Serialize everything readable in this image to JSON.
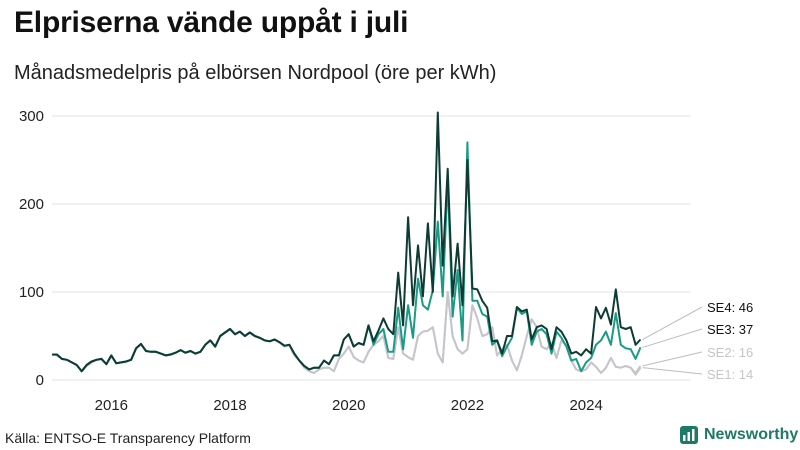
{
  "title": "Elpriserna vände uppåt i juli",
  "subtitle": "Månadsmedelpris på elbörsen Nordpool (öre per kWh)",
  "source": "Källa: ENTSO-E Transparency Platform",
  "brand": "Newsworthy",
  "chart_data": {
    "type": "line",
    "x_start": "2015-01",
    "frequency": "monthly",
    "xlim": [
      2015.0,
      2025.75
    ],
    "ylim": [
      0,
      310
    ],
    "xticks": [
      2016,
      2018,
      2020,
      2022,
      2024
    ],
    "xtick_labels": [
      "2016",
      "2018",
      "2020",
      "2022",
      "2024"
    ],
    "yticks": [
      0,
      100,
      200,
      300
    ],
    "ytick_labels": [
      "0",
      "100",
      "200",
      "300"
    ],
    "series": [
      {
        "name": "SE1",
        "color": "#c5c5cc",
        "last_label": "SE1: 14",
        "values": [
          29,
          28,
          24,
          23,
          20,
          17,
          10,
          16,
          20,
          23,
          24,
          18,
          27,
          19,
          20,
          21,
          23,
          36,
          40,
          33,
          32,
          32,
          30,
          28,
          29,
          31,
          34,
          31,
          33,
          30,
          32,
          40,
          45,
          38,
          50,
          54,
          58,
          52,
          55,
          50,
          54,
          50,
          48,
          45,
          44,
          46,
          43,
          38,
          40,
          28,
          22,
          14,
          10,
          8,
          12,
          14,
          14,
          10,
          24,
          30,
          38,
          26,
          22,
          20,
          32,
          40,
          44,
          50,
          25,
          24,
          60,
          30,
          26,
          23,
          50,
          55,
          56,
          60,
          30,
          20,
          100,
          50,
          35,
          30,
          35,
          85,
          70,
          50,
          52,
          60,
          28,
          35,
          40,
          22,
          11,
          28,
          50,
          69,
          60,
          38,
          35,
          42,
          25,
          45,
          39,
          22,
          12,
          10,
          12,
          20,
          15,
          8,
          14,
          25,
          15,
          14,
          16,
          14,
          6,
          14
        ]
      },
      {
        "name": "SE2",
        "color": "#c5c5cc",
        "last_label": "SE2: 16",
        "values": [
          29,
          28,
          24,
          23,
          20,
          17,
          10,
          16,
          20,
          23,
          24,
          18,
          27,
          19,
          20,
          21,
          23,
          36,
          40,
          33,
          32,
          32,
          30,
          28,
          29,
          31,
          34,
          31,
          33,
          30,
          32,
          40,
          45,
          38,
          50,
          54,
          58,
          52,
          55,
          50,
          54,
          50,
          48,
          45,
          44,
          46,
          43,
          38,
          40,
          28,
          22,
          14,
          10,
          8,
          12,
          14,
          14,
          10,
          24,
          30,
          38,
          26,
          22,
          20,
          32,
          40,
          44,
          50,
          25,
          24,
          60,
          30,
          26,
          23,
          50,
          55,
          56,
          60,
          30,
          20,
          100,
          50,
          35,
          30,
          35,
          85,
          70,
          50,
          52,
          60,
          28,
          35,
          40,
          22,
          11,
          28,
          50,
          69,
          60,
          38,
          35,
          42,
          25,
          45,
          39,
          22,
          12,
          10,
          12,
          20,
          15,
          8,
          14,
          25,
          15,
          14,
          16,
          14,
          8,
          16
        ]
      },
      {
        "name": "SE3",
        "color": "#1a9b86",
        "last_label": "SE3: 37",
        "values": [
          29,
          29,
          24,
          23,
          20,
          17,
          10,
          17,
          21,
          23,
          24,
          18,
          28,
          19,
          20,
          21,
          23,
          36,
          41,
          33,
          32,
          32,
          30,
          28,
          29,
          31,
          34,
          31,
          33,
          30,
          32,
          40,
          45,
          38,
          50,
          54,
          58,
          52,
          55,
          50,
          54,
          50,
          48,
          45,
          44,
          46,
          43,
          39,
          40,
          30,
          22,
          16,
          12,
          14,
          14,
          22,
          18,
          28,
          28,
          46,
          52,
          38,
          42,
          40,
          62,
          40,
          52,
          58,
          32,
          32,
          82,
          35,
          85,
          48,
          115,
          85,
          80,
          102,
          180,
          95,
          228,
          72,
          125,
          45,
          270,
          90,
          90,
          75,
          72,
          40,
          45,
          27,
          38,
          48,
          82,
          75,
          78,
          40,
          55,
          58,
          52,
          30,
          55,
          48,
          38,
          22,
          24,
          10,
          20,
          25,
          40,
          45,
          55,
          40,
          76,
          40,
          36,
          35,
          24,
          37
        ]
      },
      {
        "name": "SE4",
        "color": "#0e3b33",
        "last_label": "SE4: 46",
        "values": [
          29,
          29,
          24,
          23,
          20,
          17,
          10,
          17,
          21,
          23,
          24,
          18,
          28,
          19,
          20,
          21,
          23,
          36,
          41,
          33,
          32,
          32,
          30,
          28,
          29,
          31,
          34,
          31,
          33,
          30,
          32,
          40,
          45,
          38,
          50,
          54,
          58,
          52,
          55,
          50,
          54,
          50,
          48,
          45,
          44,
          46,
          43,
          39,
          40,
          30,
          22,
          16,
          12,
          14,
          14,
          22,
          18,
          28,
          28,
          46,
          52,
          38,
          42,
          40,
          62,
          44,
          56,
          70,
          58,
          52,
          122,
          62,
          185,
          85,
          153,
          95,
          178,
          100,
          304,
          130,
          240,
          95,
          155,
          85,
          250,
          104,
          103,
          90,
          82,
          44,
          45,
          30,
          50,
          50,
          83,
          78,
          80,
          46,
          60,
          62,
          58,
          35,
          60,
          55,
          45,
          30,
          32,
          28,
          35,
          30,
          83,
          70,
          82,
          63,
          103,
          60,
          58,
          60,
          40,
          46
        ]
      }
    ]
  }
}
